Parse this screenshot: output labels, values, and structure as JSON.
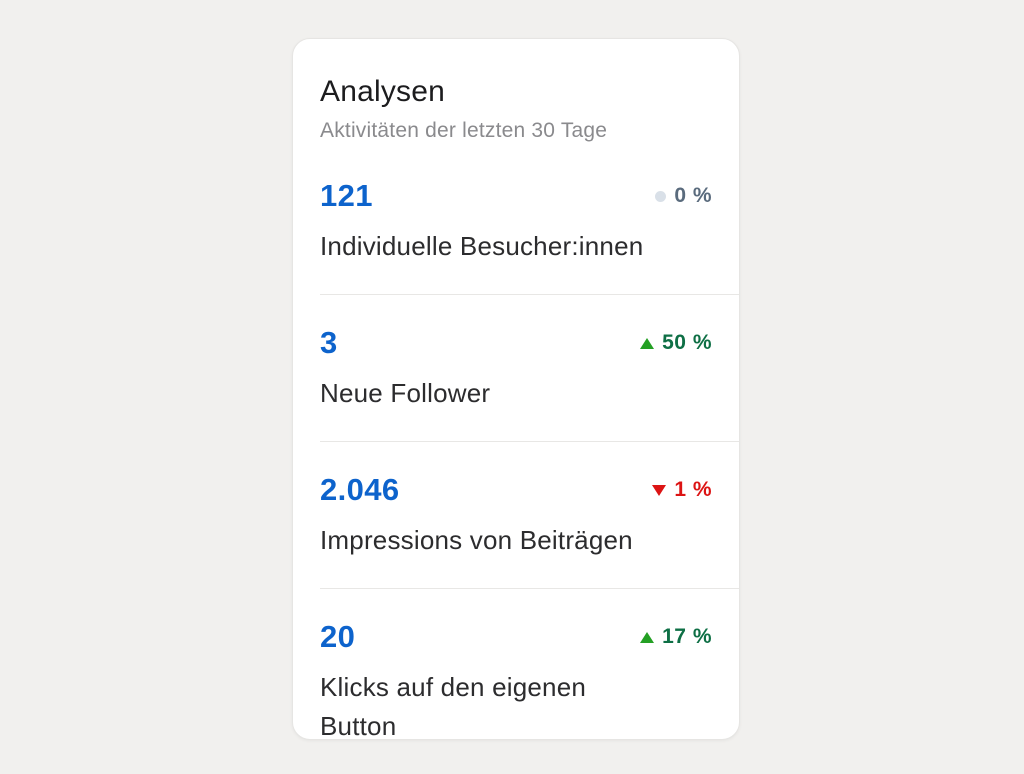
{
  "card": {
    "title": "Analysen",
    "subtitle": "Aktivitäten der letzten 30 Tage",
    "metrics": [
      {
        "id": "unique-visitors",
        "value": "121",
        "label": "Individuelle Besucher:innen",
        "change": "0 %",
        "direction": "neutral",
        "icon": "neutral-dot"
      },
      {
        "id": "new-followers",
        "value": "3",
        "label": "Neue Follower",
        "change": "50 %",
        "direction": "up",
        "icon": "triangle-up"
      },
      {
        "id": "post-impressions",
        "value": "2.046",
        "label": "Impressions von Beiträgen",
        "change": "1 %",
        "direction": "down",
        "icon": "triangle-down"
      },
      {
        "id": "custom-button-clicks",
        "value": "20",
        "label": "Klicks auf den eigenen Button",
        "change": "17 %",
        "direction": "up",
        "icon": "triangle-up"
      }
    ],
    "colors": {
      "page_background": "#f1f0ee",
      "card_background": "#ffffff",
      "value_blue": "#0d63cc",
      "up_arrow_green": "#24a024",
      "up_text_green": "#0e6f45",
      "down_red": "#dc1414",
      "neutral_text": "#5a6b7d",
      "neutral_dot": "#d9e0e8"
    }
  }
}
